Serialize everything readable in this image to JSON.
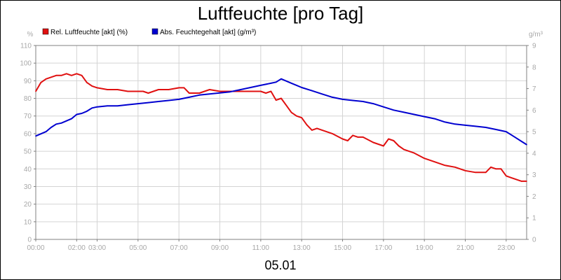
{
  "chart_data": {
    "type": "line",
    "title": "Luftfeuchte [pro Tag]",
    "xlabel": "05.01",
    "ylabel_left": "%",
    "ylabel_right": "g/m³",
    "x_unit": "hour",
    "xlim": [
      0,
      24
    ],
    "ylim_left": [
      0,
      110
    ],
    "ylim_right": [
      0,
      9
    ],
    "yticks_left": [
      "0",
      "10",
      "20",
      "30",
      "40",
      "50",
      "60",
      "70",
      "80",
      "90",
      "100",
      "110"
    ],
    "yticks_right": [
      "0",
      "1",
      "2",
      "3",
      "4",
      "5",
      "6",
      "7",
      "8",
      "9"
    ],
    "xticks": [
      {
        "label": "00:00",
        "hour": 0
      },
      {
        "label": "02:00",
        "hour": 2
      },
      {
        "label": "03:00",
        "hour": 3
      },
      {
        "label": "05:00",
        "hour": 5
      },
      {
        "label": "07:00",
        "hour": 7
      },
      {
        "label": "09:00",
        "hour": 9
      },
      {
        "label": "11:00",
        "hour": 11
      },
      {
        "label": "13:00",
        "hour": 13
      },
      {
        "label": "15:00",
        "hour": 15
      },
      {
        "label": "17:00",
        "hour": 17
      },
      {
        "label": "19:00",
        "hour": 19
      },
      {
        "label": "21:00",
        "hour": 21
      },
      {
        "label": "23:00",
        "hour": 23
      }
    ],
    "grid": true,
    "legend_position": "top-left",
    "series": [
      {
        "name": "Rel. Luftfeuchte [akt] (%)",
        "axis": "left",
        "color": "#e01010",
        "x": [
          0,
          0.25,
          0.5,
          0.75,
          1,
          1.25,
          1.5,
          1.75,
          2,
          2.25,
          2.5,
          2.75,
          3,
          3.5,
          4,
          4.5,
          5,
          5.25,
          5.5,
          6,
          6.5,
          7,
          7.25,
          7.5,
          7.75,
          8,
          8.5,
          9,
          9.5,
          10,
          10.5,
          11,
          11.25,
          11.5,
          11.75,
          12,
          12.25,
          12.5,
          12.75,
          13,
          13.25,
          13.5,
          13.75,
          14,
          14.5,
          15,
          15.25,
          15.5,
          15.75,
          16,
          16.5,
          17,
          17.25,
          17.5,
          17.75,
          18,
          18.5,
          19,
          19.5,
          20,
          20.5,
          21,
          21.5,
          22,
          22.25,
          22.5,
          22.75,
          23,
          23.25,
          23.5,
          23.75,
          24
        ],
        "values": [
          84,
          89,
          91,
          92,
          93,
          93,
          94,
          93,
          94,
          93,
          89,
          87,
          86,
          85,
          85,
          84,
          84,
          84,
          83,
          85,
          85,
          86,
          86,
          83,
          83,
          83,
          85,
          84,
          84,
          84,
          84,
          84,
          83,
          84,
          79,
          80,
          76,
          72,
          70,
          69,
          65,
          62,
          63,
          62,
          60,
          57,
          56,
          59,
          58,
          58,
          55,
          53,
          57,
          56,
          53,
          51,
          49,
          46,
          44,
          42,
          41,
          39,
          38,
          38,
          41,
          40,
          40,
          36,
          35,
          34,
          33,
          33
        ]
      },
      {
        "name": "Abs. Feuchtegehalt [akt] (g/m³)",
        "axis": "right",
        "color": "#0000d0",
        "x": [
          0,
          0.25,
          0.5,
          0.75,
          1,
          1.25,
          1.5,
          1.75,
          2,
          2.25,
          2.5,
          2.75,
          3,
          3.5,
          4,
          4.5,
          5,
          5.5,
          6,
          6.5,
          7,
          7.5,
          8,
          8.5,
          9,
          9.5,
          10,
          10.5,
          11,
          11.5,
          11.75,
          12,
          12.25,
          12.5,
          12.75,
          13,
          13.5,
          14,
          14.5,
          15,
          15.5,
          16,
          16.5,
          17,
          17.5,
          18,
          18.5,
          19,
          19.5,
          20,
          20.5,
          21,
          21.5,
          22,
          22.5,
          23,
          23.25,
          23.5,
          23.75,
          24
        ],
        "values": [
          4.8,
          4.9,
          5.0,
          5.2,
          5.35,
          5.4,
          5.5,
          5.6,
          5.8,
          5.85,
          5.95,
          6.1,
          6.15,
          6.2,
          6.2,
          6.25,
          6.3,
          6.35,
          6.4,
          6.45,
          6.5,
          6.6,
          6.7,
          6.75,
          6.8,
          6.85,
          6.95,
          7.05,
          7.15,
          7.25,
          7.3,
          7.45,
          7.35,
          7.25,
          7.15,
          7.05,
          6.9,
          6.75,
          6.6,
          6.5,
          6.45,
          6.4,
          6.3,
          6.15,
          6.0,
          5.9,
          5.8,
          5.7,
          5.6,
          5.45,
          5.35,
          5.3,
          5.25,
          5.2,
          5.1,
          5.0,
          4.85,
          4.7,
          4.55,
          4.4
        ]
      }
    ]
  }
}
